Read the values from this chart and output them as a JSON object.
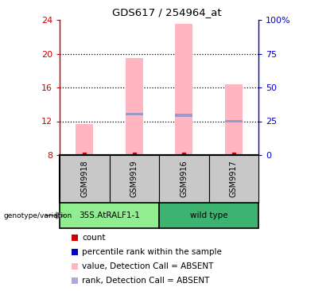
{
  "title": "GDS617 / 254964_at",
  "samples": [
    "GSM9918",
    "GSM9919",
    "GSM9916",
    "GSM9917"
  ],
  "groups": [
    "35S.AtRALF1-1",
    "35S.AtRALF1-1",
    "wild type",
    "wild type"
  ],
  "group_colors_left": "#90ee90",
  "group_colors_right": "#3cb371",
  "pink_bar_tops": [
    11.7,
    19.5,
    23.5,
    16.4
  ],
  "blue_markers": [
    null,
    12.85,
    12.7,
    12.0
  ],
  "bar_bottom": 8.0,
  "ylim_left": [
    8,
    24
  ],
  "ylim_right": [
    0,
    100
  ],
  "yticks_left": [
    8,
    12,
    16,
    20,
    24
  ],
  "yticks_right": [
    0,
    25,
    50,
    75,
    100
  ],
  "ytick_labels_right": [
    "0",
    "25",
    "50",
    "75",
    "100%"
  ],
  "left_axis_color": "#cc0000",
  "right_axis_color": "#0000cc",
  "pink_bar_color": "#ffb6c1",
  "blue_marker_color": "#9999cc",
  "red_marker_color": "#cc0000",
  "legend_items": [
    {
      "color": "#cc0000",
      "label": "count"
    },
    {
      "color": "#0000cc",
      "label": "percentile rank within the sample"
    },
    {
      "color": "#ffb6c1",
      "label": "value, Detection Call = ABSENT"
    },
    {
      "color": "#aaaadd",
      "label": "rank, Detection Call = ABSENT"
    }
  ],
  "bg_plot": "#ffffff",
  "bg_sample_row": "#c8c8c8",
  "bar_width": 0.35
}
